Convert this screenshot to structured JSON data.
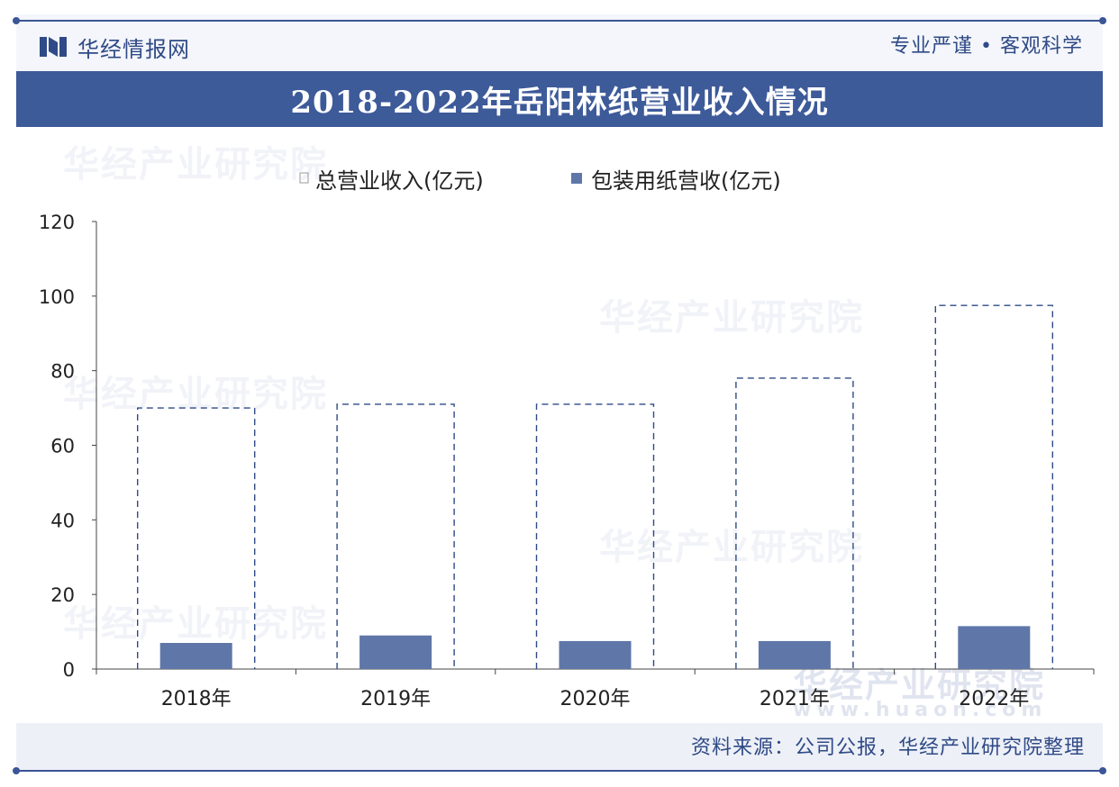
{
  "brand": {
    "name": "华经情报网",
    "slogan": "专业严谨 • 客观科学"
  },
  "title": "2018-2022年岳阳林纸营业收入情况",
  "source": "资料来源：公司公报，华经产业研究院整理",
  "watermark": {
    "text": "华经产业研究院",
    "url": "www.huaon.com"
  },
  "colors": {
    "primary": "#3d5a99",
    "bar": "#5f76a8",
    "dash": "#2f4a86"
  },
  "chart_data": {
    "type": "bar",
    "categories": [
      "2018年",
      "2019年",
      "2020年",
      "2021年",
      "2022年"
    ],
    "series": [
      {
        "name": "总营业收入(亿元)",
        "style": "dashed-outline",
        "values": [
          70,
          71,
          71,
          78,
          97.5
        ]
      },
      {
        "name": "包装用纸营收(亿元)",
        "style": "filled",
        "values": [
          7,
          9,
          7.5,
          7.5,
          11.5
        ]
      }
    ],
    "ylim": [
      0,
      120
    ],
    "yticks": [
      0,
      20,
      40,
      60,
      80,
      100,
      120
    ],
    "legend_position": "top-center",
    "grid": false
  }
}
